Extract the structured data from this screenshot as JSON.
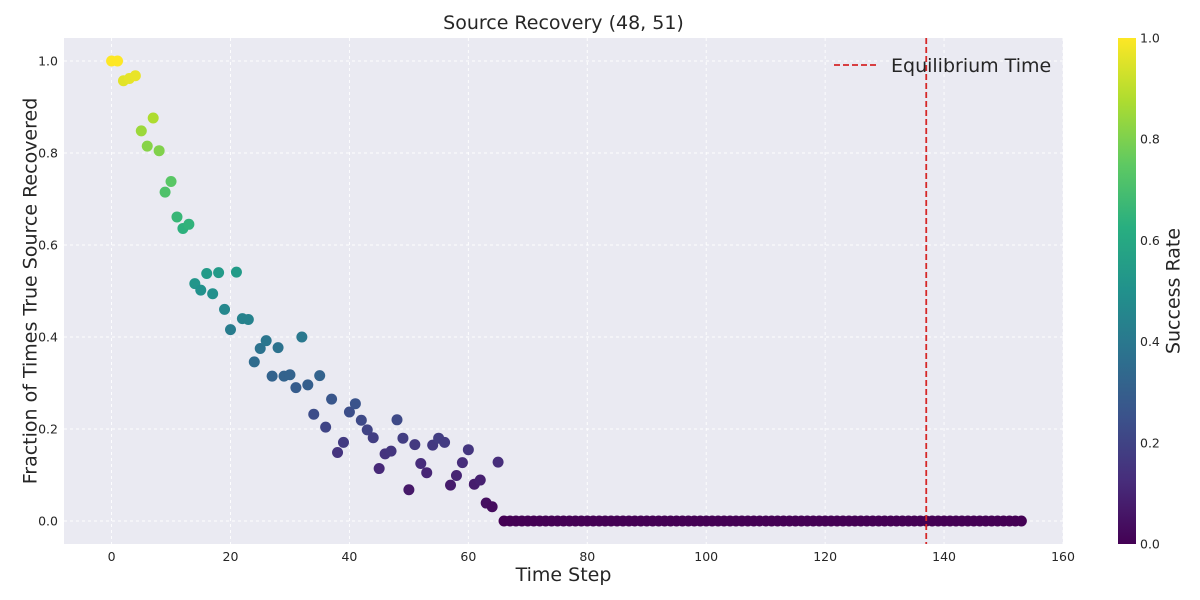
{
  "chart_data": {
    "type": "scatter",
    "title": "Source Recovery (48, 51)",
    "xlabel": "Time Step",
    "ylabel": "Fraction of Times True Source Recovered",
    "xlim": [
      -8,
      160
    ],
    "ylim": [
      -0.05,
      1.05
    ],
    "xticks": [
      0,
      20,
      40,
      60,
      80,
      100,
      120,
      140,
      160
    ],
    "yticks": [
      0.0,
      0.2,
      0.4,
      0.6,
      0.8,
      1.0
    ],
    "xtick_labels": [
      "0",
      "20",
      "40",
      "60",
      "80",
      "100",
      "120",
      "140",
      "160"
    ],
    "ytick_labels": [
      "0.0",
      "0.2",
      "0.4",
      "0.6",
      "0.8",
      "1.0"
    ],
    "grid": true,
    "colormap": "viridis",
    "colorbar": {
      "label": "Success Rate",
      "range": [
        0.0,
        1.0
      ],
      "ticks": [
        0.0,
        0.2,
        0.4,
        0.6,
        0.8,
        1.0
      ],
      "tick_labels": [
        "0.0",
        "0.2",
        "0.4",
        "0.6",
        "0.8",
        "1.0"
      ]
    },
    "series": [
      {
        "name": "",
        "x": [
          0,
          1,
          2,
          3,
          4,
          5,
          6,
          7,
          8,
          9,
          10,
          11,
          12,
          13,
          14,
          15,
          16,
          17,
          18,
          19,
          20,
          21,
          22,
          23,
          24,
          25,
          26,
          27,
          28,
          29,
          30,
          31,
          32,
          33,
          34,
          35,
          36,
          37,
          38,
          39,
          40,
          41,
          42,
          43,
          44,
          45,
          46,
          47,
          48,
          49,
          50,
          51,
          52,
          53,
          54,
          55,
          56,
          57,
          58,
          59,
          60,
          61,
          62,
          63,
          64,
          65
        ],
        "y": [
          1.0,
          1.0,
          0.957,
          0.962,
          0.968,
          0.848,
          0.815,
          0.876,
          0.805,
          0.715,
          0.738,
          0.661,
          0.636,
          0.645,
          0.516,
          0.502,
          0.538,
          0.494,
          0.54,
          0.46,
          0.416,
          0.541,
          0.44,
          0.438,
          0.346,
          0.375,
          0.392,
          0.315,
          0.377,
          0.315,
          0.318,
          0.29,
          0.4,
          0.296,
          0.232,
          0.316,
          0.204,
          0.265,
          0.149,
          0.171,
          0.237,
          0.255,
          0.219,
          0.198,
          0.181,
          0.114,
          0.146,
          0.152,
          0.22,
          0.18,
          0.068,
          0.166,
          0.125,
          0.105,
          0.165,
          0.18,
          0.171,
          0.078,
          0.099,
          0.127,
          0.155,
          0.08,
          0.089,
          0.039,
          0.031,
          0.128
        ]
      },
      {
        "name": "",
        "x_start": 66,
        "x_end": 153,
        "y": 0.0
      }
    ],
    "vline": {
      "x": 137,
      "label": "Equilibrium Time",
      "color": "#d62728",
      "style": "dashed"
    },
    "legend": {
      "placement": "top-right",
      "entries": [
        "Equilibrium Time"
      ]
    },
    "background": "#eaeaf2",
    "grid_color": "#ffffff"
  }
}
